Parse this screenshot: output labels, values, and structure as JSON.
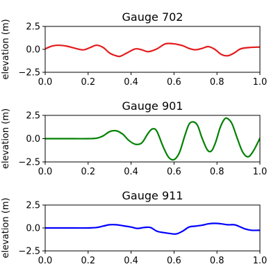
{
  "chart_data": [
    {
      "type": "line",
      "title": "Gauge 702",
      "xlabel": "",
      "ylabel": "elevation (m)",
      "xlim": [
        0.0,
        1.0
      ],
      "ylim": [
        -2.5,
        2.5
      ],
      "xticks": [
        "0.0",
        "0.2",
        "0.4",
        "0.6",
        "0.8",
        "1.0"
      ],
      "yticks": [
        "2.5",
        "0.0",
        "−2.5"
      ],
      "grid": false,
      "series": [
        {
          "color": "#e41a1c",
          "x": [
            0.0,
            0.03,
            0.06,
            0.1,
            0.15,
            0.18,
            0.21,
            0.24,
            0.27,
            0.3,
            0.33,
            0.35,
            0.38,
            0.42,
            0.45,
            0.48,
            0.52,
            0.56,
            0.6,
            0.64,
            0.67,
            0.7,
            0.73,
            0.76,
            0.79,
            0.82,
            0.85,
            0.88,
            0.91,
            0.95,
            1.0
          ],
          "y": [
            0.05,
            0.35,
            0.45,
            0.35,
            0.05,
            -0.05,
            0.2,
            0.45,
            0.2,
            -0.4,
            -0.7,
            -0.75,
            -0.4,
            0.05,
            -0.05,
            -0.25,
            0.05,
            0.6,
            0.6,
            0.4,
            0.1,
            -0.05,
            0.1,
            0.3,
            0.0,
            -0.55,
            -0.7,
            -0.4,
            0.05,
            0.2,
            0.25
          ]
        }
      ]
    },
    {
      "type": "line",
      "title": "Gauge 901",
      "xlabel": "",
      "ylabel": "elevation (m)",
      "xlim": [
        0.0,
        1.0
      ],
      "ylim": [
        -2.5,
        2.5
      ],
      "xticks": [
        "0.0",
        "0.2",
        "0.4",
        "0.6",
        "0.8",
        "1.0"
      ],
      "yticks": [
        "2.5",
        "0.0",
        "−2.5"
      ],
      "grid": false,
      "series": [
        {
          "color": "#008000",
          "x": [
            0.0,
            0.1,
            0.2,
            0.24,
            0.27,
            0.3,
            0.33,
            0.36,
            0.39,
            0.42,
            0.45,
            0.48,
            0.5,
            0.52,
            0.55,
            0.575,
            0.6,
            0.625,
            0.65,
            0.67,
            0.69,
            0.71,
            0.73,
            0.755,
            0.775,
            0.795,
            0.815,
            0.835,
            0.85,
            0.87,
            0.895,
            0.92,
            0.945,
            0.97,
            1.0
          ],
          "y": [
            0.0,
            0.0,
            0.0,
            0.05,
            0.3,
            0.75,
            0.85,
            0.5,
            -0.2,
            -0.6,
            -0.45,
            0.6,
            1.05,
            0.8,
            -0.9,
            -2.0,
            -2.25,
            -1.5,
            0.3,
            1.55,
            1.8,
            1.4,
            0.1,
            -1.2,
            -1.3,
            -0.3,
            1.2,
            2.1,
            2.15,
            1.6,
            0.0,
            -1.45,
            -1.95,
            -1.3,
            0.05
          ]
        }
      ]
    },
    {
      "type": "line",
      "title": "Gauge 911",
      "xlabel": "",
      "ylabel": "elevation (m)",
      "xlim": [
        0.0,
        1.0
      ],
      "ylim": [
        -2.5,
        2.5
      ],
      "xticks": [
        "0.0",
        "0.2",
        "0.4",
        "0.6",
        "0.8",
        "1.0"
      ],
      "yticks": [
        "2.5",
        "0.0",
        "−2.5"
      ],
      "grid": false,
      "series": [
        {
          "color": "#0000ff",
          "x": [
            0.0,
            0.1,
            0.2,
            0.24,
            0.27,
            0.3,
            0.33,
            0.36,
            0.4,
            0.43,
            0.46,
            0.49,
            0.52,
            0.55,
            0.58,
            0.61,
            0.64,
            0.67,
            0.7,
            0.73,
            0.76,
            0.79,
            0.82,
            0.85,
            0.88,
            0.9,
            0.93,
            0.96,
            1.0
          ],
          "y": [
            0.0,
            0.0,
            0.0,
            0.05,
            0.2,
            0.35,
            0.35,
            0.25,
            0.1,
            -0.05,
            0.05,
            0.05,
            -0.35,
            -0.5,
            -0.6,
            -0.65,
            -0.35,
            0.1,
            0.2,
            0.3,
            0.45,
            0.5,
            0.45,
            0.35,
            0.35,
            0.2,
            -0.1,
            -0.25,
            -0.25
          ]
        }
      ]
    }
  ]
}
